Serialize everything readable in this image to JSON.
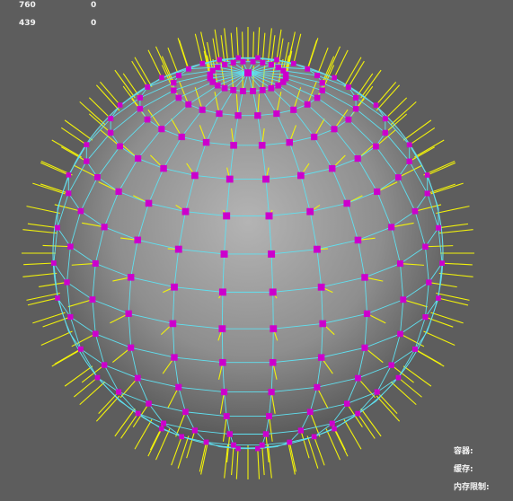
{
  "hud": {
    "rows": [
      {
        "label": "760",
        "value": "0"
      },
      {
        "label": "439",
        "value": "0"
      }
    ]
  },
  "stats": [
    {
      "label": "容器:"
    },
    {
      "label": "缓存:"
    },
    {
      "label": "内存限制:"
    }
  ],
  "colors": {
    "background": "#5d5d5d",
    "wireframe": "#5fe0f0",
    "vertex": "#cc00cc",
    "normal": "#f2f20a",
    "sphere_light": "#b4b4b4",
    "sphere_dark": "#4a4a4a"
  },
  "scene": {
    "object": "uv-sphere",
    "display": "wireframe-on-shaded",
    "show_vertices": true,
    "show_normals": true
  }
}
